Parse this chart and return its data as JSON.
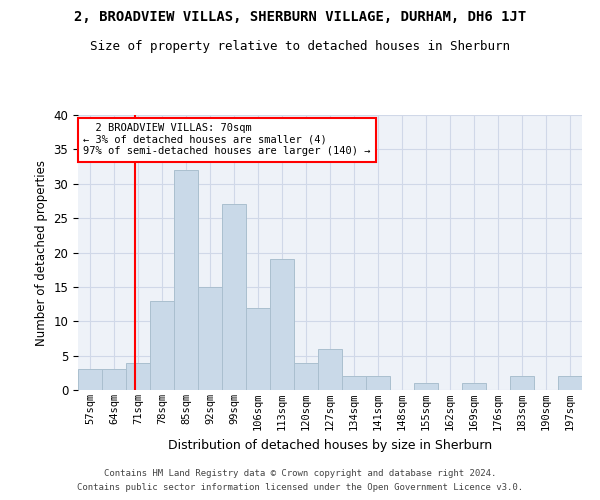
{
  "title_main": "2, BROADVIEW VILLAS, SHERBURN VILLAGE, DURHAM, DH6 1JT",
  "title_sub": "Size of property relative to detached houses in Sherburn",
  "xlabel": "Distribution of detached houses by size in Sherburn",
  "ylabel": "Number of detached properties",
  "bar_labels": [
    "57sqm",
    "64sqm",
    "71sqm",
    "78sqm",
    "85sqm",
    "92sqm",
    "99sqm",
    "106sqm",
    "113sqm",
    "120sqm",
    "127sqm",
    "134sqm",
    "141sqm",
    "148sqm",
    "155sqm",
    "162sqm",
    "169sqm",
    "176sqm",
    "183sqm",
    "190sqm",
    "197sqm"
  ],
  "bar_values": [
    3,
    3,
    4,
    13,
    32,
    15,
    27,
    12,
    19,
    4,
    6,
    2,
    2,
    0,
    1,
    0,
    1,
    0,
    2,
    0,
    2
  ],
  "bar_color": "#c9d9e8",
  "bar_edge_color": "#aabfcf",
  "subject_line_label": "2 BROADVIEW VILLAS: 70sqm",
  "annotation_line1": "← 3% of detached houses are smaller (4)",
  "annotation_line2": "97% of semi-detached houses are larger (140) →",
  "annotation_box_color": "white",
  "annotation_box_edge": "red",
  "vline_color": "red",
  "grid_color": "#d0d8e8",
  "bg_color": "#eef2f8",
  "ylim": [
    0,
    40
  ],
  "yticks": [
    0,
    5,
    10,
    15,
    20,
    25,
    30,
    35,
    40
  ],
  "footer1": "Contains HM Land Registry data © Crown copyright and database right 2024.",
  "footer2": "Contains public sector information licensed under the Open Government Licence v3.0."
}
